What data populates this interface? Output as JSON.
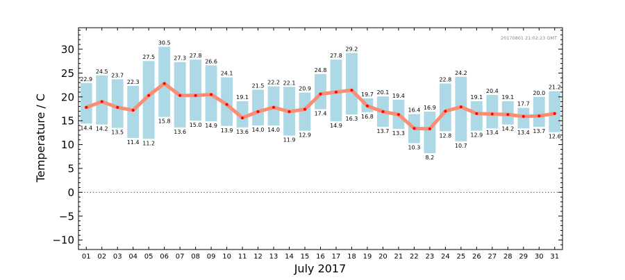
{
  "chart_data": {
    "type": "bar",
    "timestamp": "20170801 21:02:23 GMT",
    "xlabel": "July 2017",
    "ylabel": "Temperature / C",
    "ylim": [
      -12,
      34.5
    ],
    "yticks": [
      -10,
      -5,
      0,
      5,
      10,
      15,
      20,
      25,
      30
    ],
    "ytick_labels": [
      "−10",
      "−5",
      "0",
      "5",
      "10",
      "15",
      "20",
      "25",
      "30"
    ],
    "categories": [
      "01",
      "02",
      "03",
      "04",
      "05",
      "06",
      "07",
      "08",
      "09",
      "10",
      "11",
      "12",
      "13",
      "14",
      "15",
      "16",
      "17",
      "18",
      "19",
      "20",
      "21",
      "22",
      "23",
      "24",
      "25",
      "26",
      "27",
      "28",
      "29",
      "30",
      "31"
    ],
    "series": [
      {
        "role": "range_max",
        "values": [
          22.9,
          24.5,
          23.7,
          22.3,
          27.5,
          30.5,
          27.3,
          27.8,
          26.6,
          24.1,
          19.1,
          21.5,
          22.2,
          22.1,
          20.9,
          24.8,
          27.8,
          29.2,
          19.7,
          20.1,
          19.4,
          16.4,
          16.9,
          22.8,
          24.2,
          19.1,
          20.4,
          19.1,
          17.7,
          20.0,
          21.2
        ]
      },
      {
        "role": "range_min",
        "values": [
          14.4,
          14.2,
          13.5,
          11.4,
          11.2,
          15.8,
          13.6,
          15.0,
          14.9,
          13.9,
          13.6,
          14.0,
          14.0,
          11.9,
          12.9,
          17.4,
          14.9,
          16.3,
          16.8,
          13.7,
          13.3,
          10.3,
          8.2,
          12.8,
          10.7,
          12.9,
          13.4,
          14.2,
          13.4,
          13.7,
          12.6
        ]
      },
      {
        "role": "mean",
        "values": [
          17.8,
          19.0,
          17.8,
          17.2,
          20.3,
          22.8,
          20.3,
          20.3,
          20.5,
          18.4,
          15.6,
          16.9,
          17.8,
          16.9,
          17.4,
          20.6,
          21.0,
          21.4,
          18.1,
          16.9,
          16.3,
          13.4,
          13.3,
          17.0,
          17.9,
          16.5,
          16.4,
          16.3,
          15.9,
          16.0,
          16.5
        ]
      }
    ],
    "reference_line": {
      "y": 0,
      "style": "dotted"
    },
    "colors": {
      "range_bar": "#add8e6",
      "mean_line": "#fa8d73",
      "mean_point": "#ff0000",
      "zero_line": "#3333cc",
      "axis": "#000000",
      "timestamp": "#888888"
    }
  }
}
